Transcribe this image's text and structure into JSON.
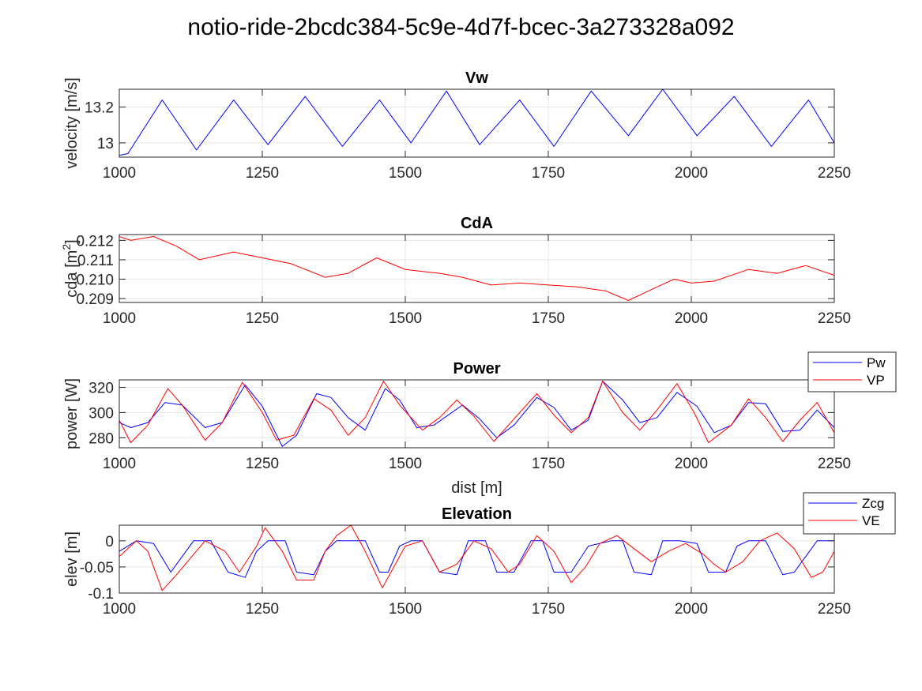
{
  "figure_title": "notio-ride-2bcdc384-5c9e-4d7f-bcec-3a273328a092",
  "chart_data": [
    {
      "type": "line",
      "title": "Vw",
      "xlabel": "",
      "ylabel": "velocity [m/s]",
      "xlim": [
        1000,
        2250
      ],
      "ylim": [
        12.92,
        13.3
      ],
      "xticks": [
        1000,
        1250,
        1500,
        1750,
        2000,
        2250
      ],
      "yticks": [
        13.0,
        13.2
      ],
      "ytick_labels": [
        "13",
        "13.2"
      ],
      "grid": true,
      "legend": null,
      "series": [
        {
          "color": "#0000ff",
          "x": [
            1000,
            1015,
            1075,
            1135,
            1200,
            1260,
            1325,
            1390,
            1455,
            1510,
            1572,
            1630,
            1700,
            1760,
            1825,
            1890,
            1950,
            2010,
            2075,
            2140,
            2205,
            2250
          ],
          "y": [
            12.93,
            12.94,
            13.24,
            12.96,
            13.24,
            12.99,
            13.26,
            12.98,
            13.24,
            13.0,
            13.29,
            12.99,
            13.24,
            12.98,
            13.29,
            13.04,
            13.3,
            13.04,
            13.26,
            12.98,
            13.24,
            13.0
          ]
        }
      ]
    },
    {
      "type": "line",
      "title": "CdA",
      "xlabel": "",
      "ylabel": "cda [m²]",
      "xlim": [
        1000,
        2250
      ],
      "ylim": [
        0.2088,
        0.2123
      ],
      "xticks": [
        1000,
        1250,
        1500,
        1750,
        2000,
        2250
      ],
      "yticks": [
        0.209,
        0.21,
        0.211,
        0.212
      ],
      "ytick_labels": [
        "0.209",
        "0.210",
        "0.211",
        "0.212"
      ],
      "grid": true,
      "legend": null,
      "series": [
        {
          "color": "#ff0000",
          "x": [
            1000,
            1020,
            1060,
            1100,
            1140,
            1200,
            1250,
            1300,
            1360,
            1400,
            1450,
            1500,
            1560,
            1600,
            1650,
            1700,
            1750,
            1800,
            1850,
            1890,
            1940,
            1970,
            2000,
            2040,
            2100,
            2150,
            2200,
            2250
          ],
          "y": [
            0.2122,
            0.212,
            0.2122,
            0.2117,
            0.211,
            0.2114,
            0.2111,
            0.2108,
            0.2101,
            0.2103,
            0.2111,
            0.2105,
            0.2103,
            0.2101,
            0.2097,
            0.2098,
            0.2097,
            0.2096,
            0.2094,
            0.2089,
            0.2096,
            0.21,
            0.2098,
            0.2099,
            0.2105,
            0.2103,
            0.2107,
            0.2102
          ]
        }
      ]
    },
    {
      "type": "line",
      "title": "Power",
      "xlabel": "dist [m]",
      "ylabel": "power [W]",
      "xlim": [
        1000,
        2250
      ],
      "ylim": [
        272,
        326
      ],
      "xticks": [
        1000,
        1250,
        1500,
        1750,
        2000,
        2250
      ],
      "yticks": [
        280,
        300,
        320
      ],
      "ytick_labels": [
        "280",
        "300",
        "320"
      ],
      "grid": true,
      "legend": "top-right",
      "series": [
        {
          "name": "Pw",
          "color": "#0000ff",
          "x": [
            1000,
            1020,
            1050,
            1080,
            1110,
            1150,
            1180,
            1220,
            1250,
            1285,
            1310,
            1345,
            1370,
            1400,
            1430,
            1465,
            1490,
            1520,
            1550,
            1600,
            1630,
            1660,
            1690,
            1730,
            1760,
            1790,
            1820,
            1845,
            1880,
            1910,
            1940,
            1975,
            2010,
            2040,
            2070,
            2100,
            2130,
            2160,
            2190,
            2220,
            2250
          ],
          "y": [
            292,
            288,
            292,
            308,
            306,
            288,
            292,
            322,
            305,
            273,
            282,
            315,
            312,
            296,
            286,
            319,
            310,
            288,
            290,
            306,
            295,
            280,
            290,
            312,
            304,
            286,
            294,
            325,
            310,
            292,
            296,
            316,
            305,
            284,
            290,
            308,
            307,
            285,
            286,
            302,
            288
          ]
        },
        {
          "name": "VP",
          "color": "#ff0000",
          "x": [
            1000,
            1020,
            1050,
            1085,
            1110,
            1150,
            1180,
            1215,
            1250,
            1275,
            1305,
            1340,
            1370,
            1400,
            1430,
            1462,
            1490,
            1530,
            1560,
            1590,
            1620,
            1655,
            1690,
            1730,
            1760,
            1790,
            1820,
            1845,
            1880,
            1910,
            1940,
            1975,
            2005,
            2030,
            2070,
            2100,
            2130,
            2160,
            2190,
            2220,
            2250
          ],
          "y": [
            294,
            276,
            290,
            319,
            306,
            278,
            292,
            324,
            300,
            278,
            282,
            311,
            302,
            282,
            296,
            325,
            306,
            286,
            296,
            310,
            297,
            277,
            295,
            315,
            298,
            284,
            296,
            325,
            300,
            286,
            302,
            323,
            300,
            276,
            290,
            311,
            296,
            277,
            294,
            308,
            284
          ]
        }
      ]
    },
    {
      "type": "line",
      "title": "Elevation",
      "xlabel": "",
      "ylabel": "elev [m]",
      "xlim": [
        1000,
        2250
      ],
      "ylim": [
        -0.1,
        0.03
      ],
      "xticks": [
        1000,
        1250,
        1500,
        1750,
        2000,
        2250
      ],
      "yticks": [
        -0.1,
        -0.05,
        0
      ],
      "ytick_labels": [
        "-0.1",
        "-0.05",
        "0"
      ],
      "grid": true,
      "legend": "top-right",
      "series": [
        {
          "name": "Zcg",
          "color": "#0000ff",
          "x": [
            1000,
            1030,
            1060,
            1090,
            1110,
            1130,
            1160,
            1190,
            1220,
            1240,
            1260,
            1290,
            1310,
            1340,
            1360,
            1380,
            1400,
            1430,
            1455,
            1470,
            1490,
            1510,
            1530,
            1560,
            1590,
            1610,
            1640,
            1660,
            1690,
            1720,
            1740,
            1760,
            1790,
            1820,
            1860,
            1880,
            1900,
            1930,
            1950,
            1980,
            2010,
            2030,
            2060,
            2080,
            2100,
            2130,
            2160,
            2180,
            2200,
            2220,
            2240,
            2250
          ],
          "y": [
            -0.02,
            0,
            -0.005,
            -0.06,
            -0.03,
            0,
            0,
            -0.06,
            -0.07,
            -0.02,
            0,
            0,
            -0.06,
            -0.065,
            -0.02,
            0,
            0,
            0,
            -0.06,
            -0.06,
            -0.01,
            0,
            0,
            -0.06,
            -0.065,
            0,
            0,
            -0.06,
            -0.06,
            0,
            0,
            -0.06,
            -0.06,
            -0.01,
            0,
            0,
            -0.06,
            -0.065,
            0,
            0,
            -0.005,
            -0.06,
            -0.06,
            -0.01,
            0,
            0,
            -0.065,
            -0.06,
            -0.03,
            0,
            0,
            0
          ]
        },
        {
          "name": "VE",
          "color": "#ff0000",
          "x": [
            1000,
            1030,
            1050,
            1075,
            1100,
            1150,
            1185,
            1210,
            1240,
            1255,
            1285,
            1310,
            1340,
            1360,
            1380,
            1405,
            1430,
            1460,
            1480,
            1500,
            1530,
            1560,
            1590,
            1620,
            1650,
            1680,
            1700,
            1730,
            1760,
            1790,
            1815,
            1840,
            1870,
            1900,
            1930,
            1960,
            1990,
            2020,
            2040,
            2060,
            2090,
            2120,
            2150,
            2180,
            2210,
            2230,
            2250
          ],
          "y": [
            -0.03,
            0,
            -0.02,
            -0.095,
            -0.065,
            0,
            -0.02,
            -0.06,
            -0.01,
            0.025,
            -0.02,
            -0.075,
            -0.075,
            -0.02,
            0.01,
            0.03,
            -0.02,
            -0.09,
            -0.05,
            -0.01,
            0,
            -0.06,
            -0.045,
            0,
            -0.015,
            -0.06,
            -0.045,
            0.01,
            -0.02,
            -0.08,
            -0.05,
            -0.005,
            0.01,
            -0.015,
            -0.04,
            -0.02,
            -0.005,
            -0.025,
            -0.045,
            -0.06,
            -0.04,
            0,
            0.015,
            -0.015,
            -0.07,
            -0.06,
            -0.02
          ]
        }
      ]
    }
  ]
}
